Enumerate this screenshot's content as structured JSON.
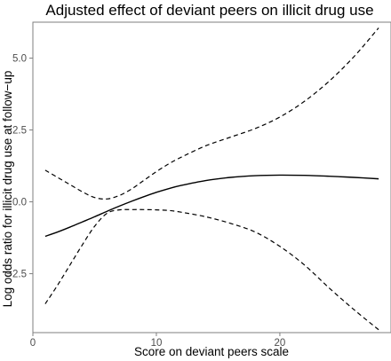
{
  "chart_data": {
    "type": "line",
    "title": "Adjusted effect of deviant peers on illicit drug use",
    "xlabel": "Score on deviant peers scale",
    "ylabel": "Log odds ratio for illicit drug use at follow−up",
    "xlim": [
      0,
      29
    ],
    "ylim": [
      -4.55,
      6.25
    ],
    "x_ticks": [
      0,
      10,
      20
    ],
    "x_tick_labels": [
      "0",
      "10",
      "20"
    ],
    "y_ticks": [
      -2.5,
      0,
      2.5,
      5
    ],
    "y_tick_labels": [
      "−2.5",
      "0.0",
      "2.5",
      "5.0"
    ],
    "grid": false,
    "legend": "none",
    "series": [
      {
        "role": "estimate",
        "style": "solid",
        "x": [
          1,
          2,
          3,
          4,
          5,
          6,
          7,
          8,
          9,
          10,
          11,
          12,
          14,
          16,
          18,
          20,
          22,
          24,
          26,
          28
        ],
        "y": [
          -1.2,
          -1.05,
          -0.88,
          -0.7,
          -0.52,
          -0.33,
          -0.15,
          0.02,
          0.18,
          0.33,
          0.46,
          0.57,
          0.74,
          0.85,
          0.91,
          0.93,
          0.92,
          0.89,
          0.85,
          0.8
        ]
      },
      {
        "role": "upper",
        "style": "dashed",
        "x": [
          1,
          2,
          3,
          4,
          5,
          6,
          7,
          8,
          9,
          10,
          11,
          12,
          14,
          16,
          18,
          20,
          22,
          24,
          26,
          28
        ],
        "y": [
          1.1,
          0.85,
          0.6,
          0.35,
          0.15,
          0.1,
          0.22,
          0.45,
          0.75,
          1.05,
          1.32,
          1.55,
          1.95,
          2.25,
          2.55,
          2.95,
          3.5,
          4.2,
          5.05,
          6.05
        ]
      },
      {
        "role": "lower",
        "style": "dashed",
        "x": [
          1,
          2,
          3,
          4,
          5,
          6,
          7,
          8,
          9,
          10,
          11,
          12,
          14,
          16,
          18,
          20,
          22,
          24,
          26,
          28
        ],
        "y": [
          -3.55,
          -2.9,
          -2.2,
          -1.5,
          -0.85,
          -0.4,
          -0.28,
          -0.27,
          -0.27,
          -0.28,
          -0.3,
          -0.36,
          -0.52,
          -0.75,
          -1.05,
          -1.55,
          -2.2,
          -3.0,
          -3.75,
          -4.45
        ]
      }
    ]
  }
}
